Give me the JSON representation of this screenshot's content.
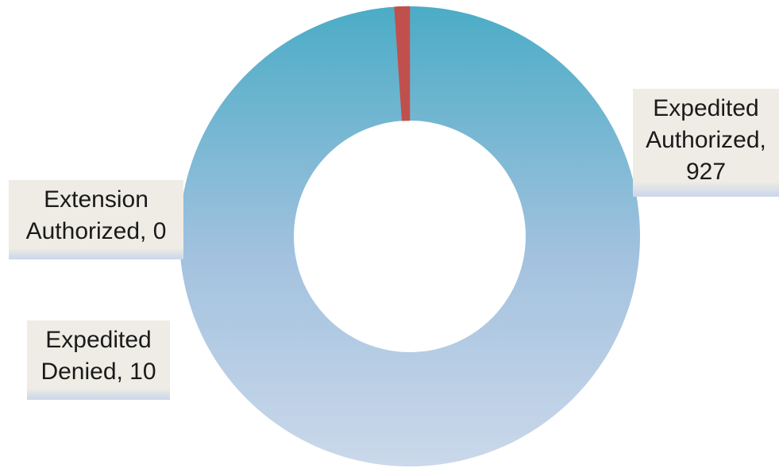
{
  "chart_data": {
    "type": "pie",
    "variant": "donut",
    "slices": [
      {
        "category": "Expedited Authorized",
        "value": 927,
        "label_line1": "Expedited",
        "label_line2": "Authorized,",
        "label_line3": "927",
        "color": "#5fb0cc"
      },
      {
        "category": "Extension Authorized",
        "value": 0,
        "label_line1": "Extension",
        "label_line2": "Authorized, 0",
        "color": "#7fb8d6"
      },
      {
        "category": "Expedited Denied",
        "value": 10,
        "label_line1": "Expedited",
        "label_line2": "Denied, 10",
        "color": "#c0504d"
      }
    ],
    "legend": "none",
    "gradient_top_color": "#4bacc6",
    "gradient_bottom_color": "#cbd8ea",
    "label_box_color": "#eeece4"
  }
}
